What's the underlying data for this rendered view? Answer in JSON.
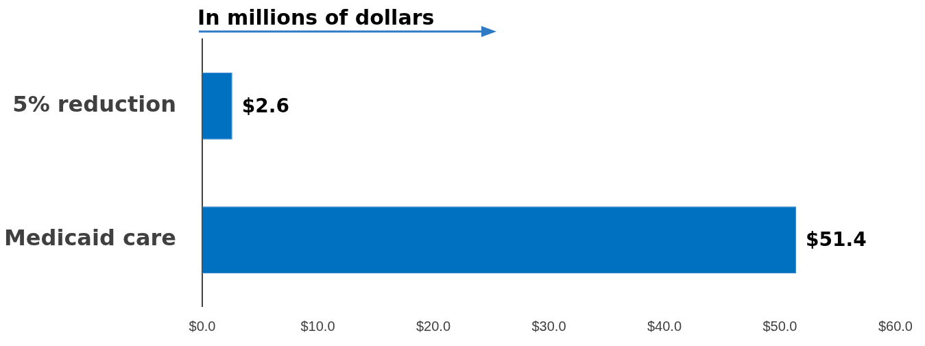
{
  "chart_data": {
    "type": "bar",
    "orientation": "horizontal",
    "title": "In millions of dollars",
    "categories": [
      "5% reduction",
      "Medicaid care"
    ],
    "values": [
      2.6,
      51.4
    ],
    "color": "#0070c0",
    "value_labels": [
      "$2.6",
      "$51.4"
    ],
    "xlim": [
      0,
      60
    ],
    "xticks": [
      {
        "value": 0,
        "label": "$0.0"
      },
      {
        "value": 10,
        "label": "$10.0"
      },
      {
        "value": 20,
        "label": "$20.0"
      },
      {
        "value": 30,
        "label": "$30.0"
      },
      {
        "value": 40,
        "label": "$40.0"
      },
      {
        "value": 50,
        "label": "$50.0"
      },
      {
        "value": 60,
        "label": "$60.0"
      }
    ],
    "grid": false,
    "legend": false
  }
}
